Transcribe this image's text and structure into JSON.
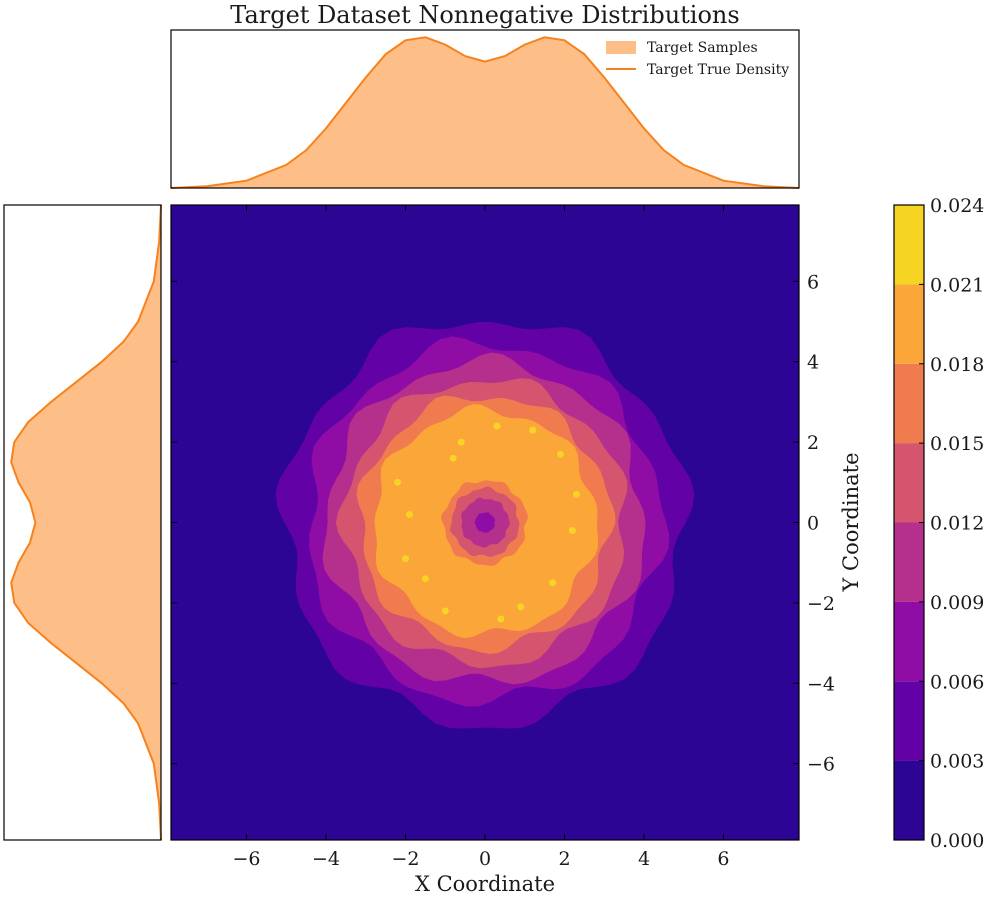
{
  "chart_data": {
    "type": "heatmap",
    "title": "Target Dataset Nonnegative Distributions",
    "xlabel": "X Coordinate",
    "ylabel": "Y Coordinate",
    "xlim": [
      -7.9,
      7.9
    ],
    "ylim": [
      -7.9,
      7.9
    ],
    "x_ticks": [
      -6,
      -4,
      -2,
      0,
      2,
      4,
      6
    ],
    "y_ticks": [
      -6,
      -4,
      -2,
      0,
      2,
      4,
      6
    ],
    "x_tick_labels": [
      "−6",
      "−4",
      "−2",
      "0",
      "2",
      "4",
      "6"
    ],
    "y_tick_labels": [
      "−6",
      "−4",
      "−2",
      "0",
      "2",
      "4",
      "6"
    ],
    "grid": false,
    "contour": {
      "shape": "ring",
      "ring_radius": 1.7,
      "levels": [
        0.0,
        0.003,
        0.006,
        0.009,
        0.012,
        0.015,
        0.018,
        0.021,
        0.024
      ],
      "level_colors": [
        "#2d0594",
        "#6202a6",
        "#8f0da4",
        "#b52f8c",
        "#d5546e",
        "#ef7b4f",
        "#fba638",
        "#f5d424"
      ],
      "ring_contours": [
        {
          "level": 0.003,
          "r_inner": 0.0,
          "r_outer": 5.05
        },
        {
          "level": 0.006,
          "r_inner": 0.0,
          "r_outer": 4.45
        },
        {
          "level": 0.009,
          "r_inner": 0.25,
          "r_outer": 4.0
        },
        {
          "level": 0.012,
          "r_inner": 0.6,
          "r_outer": 3.55
        },
        {
          "level": 0.015,
          "r_inner": 0.85,
          "r_outer": 3.15
        },
        {
          "level": 0.018,
          "r_inner": 1.05,
          "r_outer": 2.8
        }
      ],
      "peak_spots": [
        [
          1.9,
          1.7
        ],
        [
          -0.6,
          2.0
        ],
        [
          1.2,
          2.3
        ],
        [
          -1.0,
          -2.2
        ],
        [
          0.9,
          -2.1
        ],
        [
          -1.9,
          0.2
        ],
        [
          2.2,
          -0.2
        ],
        [
          0.3,
          2.4
        ],
        [
          -1.5,
          -1.4
        ],
        [
          1.7,
          -1.5
        ],
        [
          -2.0,
          -0.9
        ],
        [
          0.4,
          -2.4
        ],
        [
          -0.8,
          1.6
        ],
        [
          2.3,
          0.7
        ],
        [
          -2.2,
          1.0
        ]
      ]
    },
    "colorbar": {
      "ticks": [
        0.0,
        0.003,
        0.006,
        0.009,
        0.012,
        0.015,
        0.018,
        0.021,
        0.024
      ],
      "tick_labels": [
        "0.000",
        "0.003",
        "0.006",
        "0.009",
        "0.012",
        "0.015",
        "0.018",
        "0.021",
        "0.024"
      ]
    },
    "marginal_x": {
      "type": "area",
      "x": [
        -7.9,
        -7.0,
        -6.0,
        -5.0,
        -4.5,
        -4.0,
        -3.5,
        -3.0,
        -2.5,
        -2.0,
        -1.5,
        -1.0,
        -0.5,
        0.0,
        0.5,
        1.0,
        1.5,
        2.0,
        2.5,
        3.0,
        3.5,
        4.0,
        4.5,
        5.0,
        6.0,
        7.0,
        7.9
      ],
      "density": [
        0.0,
        0.003,
        0.012,
        0.038,
        0.062,
        0.098,
        0.14,
        0.182,
        0.22,
        0.243,
        0.248,
        0.236,
        0.217,
        0.208,
        0.217,
        0.236,
        0.248,
        0.243,
        0.22,
        0.182,
        0.14,
        0.098,
        0.062,
        0.038,
        0.012,
        0.003,
        0.0
      ],
      "ylim": [
        0,
        0.26
      ],
      "legend": [
        "Target Samples",
        "Target True Density"
      ],
      "legend_position": "top-right"
    },
    "marginal_y": {
      "type": "area",
      "y": [
        -7.9,
        -7.0,
        -6.0,
        -5.0,
        -4.5,
        -4.0,
        -3.5,
        -3.0,
        -2.5,
        -2.0,
        -1.5,
        -1.0,
        -0.5,
        0.0,
        0.5,
        1.0,
        1.5,
        2.0,
        2.5,
        3.0,
        3.5,
        4.0,
        4.5,
        5.0,
        6.0,
        7.0,
        7.9
      ],
      "density": [
        0.0,
        0.003,
        0.012,
        0.038,
        0.062,
        0.098,
        0.14,
        0.182,
        0.22,
        0.243,
        0.248,
        0.236,
        0.217,
        0.208,
        0.217,
        0.236,
        0.248,
        0.243,
        0.22,
        0.182,
        0.14,
        0.098,
        0.062,
        0.038,
        0.012,
        0.003,
        0.0
      ],
      "xlim": [
        0,
        0.26
      ]
    },
    "colors": {
      "samples_fill": "#fdbf87",
      "density_line": "#f7811d",
      "background_level": "#2d0594"
    }
  }
}
